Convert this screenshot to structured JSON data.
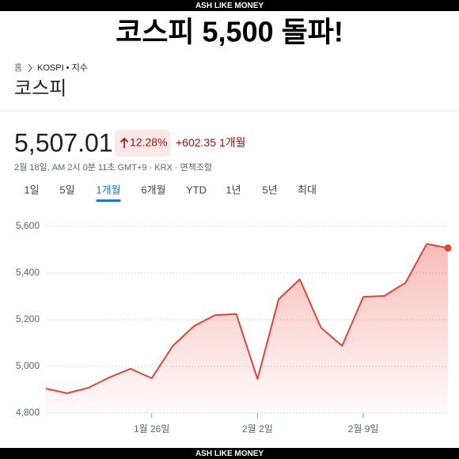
{
  "banner_top": "ASH LIKE MONEY",
  "headline": "코스피 5,500 돌파!",
  "breadcrumb": {
    "home": "홈",
    "item": "KOSPI • 지수"
  },
  "name": "코스피",
  "price": "5,507.01",
  "change_pct": "12.28%",
  "change_abs": "+602.35",
  "period": "1개월",
  "timestamp": "2월 18일, AM 2시 0분 11초 GMT+9 · KRX · 면책조항",
  "tabs": [
    "1일",
    "5일",
    "1개월",
    "6개월",
    "YTD",
    "1년",
    "5년",
    "최대"
  ],
  "active_tab": 2,
  "chart_data": {
    "type": "line",
    "categories": [
      null,
      null,
      null,
      null,
      null,
      "1월 26일",
      null,
      null,
      null,
      null,
      "2월 2일",
      null,
      null,
      null,
      null,
      "2월 9일",
      null,
      null,
      null,
      null
    ],
    "values": [
      4905,
      4885,
      4908,
      4953,
      4990,
      4949,
      5088,
      5173,
      5220,
      5224,
      4946,
      5288,
      5373,
      5166,
      5088,
      5298,
      5302,
      5359,
      5525,
      5507
    ],
    "color": "#e94235",
    "ylim": [
      4800,
      5600
    ],
    "yticks": [
      {
        "value": 4800,
        "label": "4,800"
      },
      {
        "value": 5000,
        "label": "5,000"
      },
      {
        "value": 5200,
        "label": "5,200"
      },
      {
        "value": 5400,
        "label": "5,400"
      },
      {
        "value": 5600,
        "label": "5,600"
      }
    ],
    "grid": true
  },
  "banner_bottom": "ASH LIKE MONEY"
}
